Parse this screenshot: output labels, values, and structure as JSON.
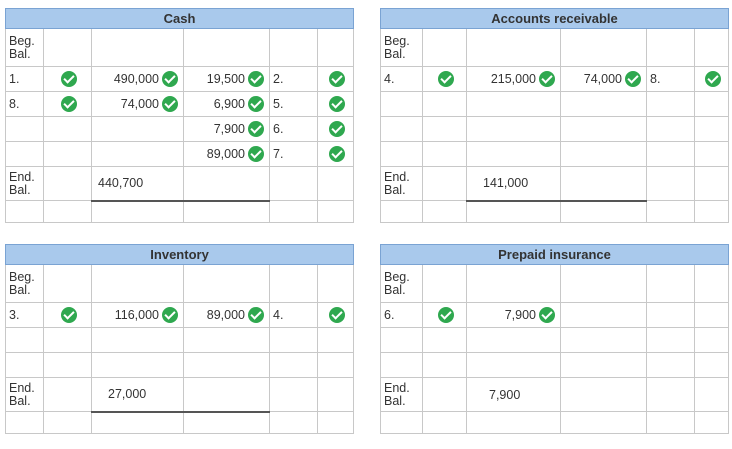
{
  "labels": {
    "beg": [
      "Beg.",
      "Bal."
    ],
    "end": [
      "End.",
      "Bal."
    ]
  },
  "cash": {
    "title": "Cash",
    "debits": [
      {
        "ref": "1.",
        "amount": "490,000"
      },
      {
        "ref": "8.",
        "amount": "74,000"
      }
    ],
    "credits": [
      {
        "ref": "2.",
        "amount": "19,500"
      },
      {
        "ref": "5.",
        "amount": "6,900"
      },
      {
        "ref": "6.",
        "amount": "7,900"
      },
      {
        "ref": "7.",
        "amount": "89,000"
      }
    ],
    "end_balance": "440,700"
  },
  "ar": {
    "title": "Accounts receivable",
    "debits": [
      {
        "ref": "4.",
        "amount": "215,000"
      }
    ],
    "credits": [
      {
        "ref": "8.",
        "amount": "74,000"
      }
    ],
    "end_balance": "141,000"
  },
  "inventory": {
    "title": "Inventory",
    "debits": [
      {
        "ref": "3.",
        "amount": "116,000"
      }
    ],
    "credits": [
      {
        "ref": "4.",
        "amount": "89,000"
      }
    ],
    "end_balance": "27,000"
  },
  "prepaid": {
    "title": "Prepaid insurance",
    "debits": [
      {
        "ref": "6.",
        "amount": "7,900"
      }
    ],
    "end_balance": "7,900"
  },
  "colors": {
    "header_bg": "#a9c9ec",
    "check": "#2fa84f",
    "grid": "#c8c8c8"
  },
  "icons": {
    "check": "check-circle-icon"
  }
}
